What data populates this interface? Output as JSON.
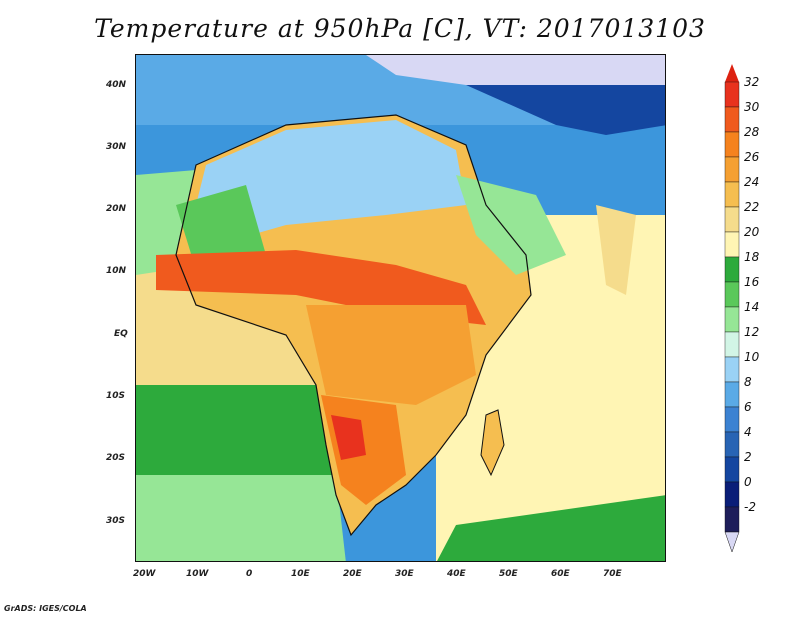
{
  "title": "Temperature at 950hPa [C], VT: 2017013103",
  "credit": "GrADS: IGES/COLA",
  "lat_labels": [
    "40N",
    "30N",
    "20N",
    "10N",
    "EQ",
    "10S",
    "20S",
    "30S"
  ],
  "lon_labels": [
    "20W",
    "10W",
    "0",
    "10E",
    "20E",
    "30E",
    "40E",
    "50E",
    "60E",
    "70E"
  ],
  "colorbar": {
    "labels": [
      "32",
      "30",
      "28",
      "26",
      "24",
      "22",
      "20",
      "18",
      "16",
      "14",
      "12",
      "10",
      "8",
      "6",
      "4",
      "2",
      "0",
      "-2"
    ],
    "colors": [
      "#e8321e",
      "#f05a1e",
      "#f5821e",
      "#f5a032",
      "#f5be50",
      "#f5dc8c",
      "#fff5b4",
      "#2daa3c",
      "#5ac85a",
      "#96e696",
      "#d2f5e6",
      "#9ad2f5",
      "#5aaae6",
      "#3c82d2",
      "#2864b4",
      "#1446a0",
      "#0a1e78",
      "#1e1e5a"
    ],
    "top_color": "#dd2211",
    "bottom_color": "#d8d8f4"
  }
}
